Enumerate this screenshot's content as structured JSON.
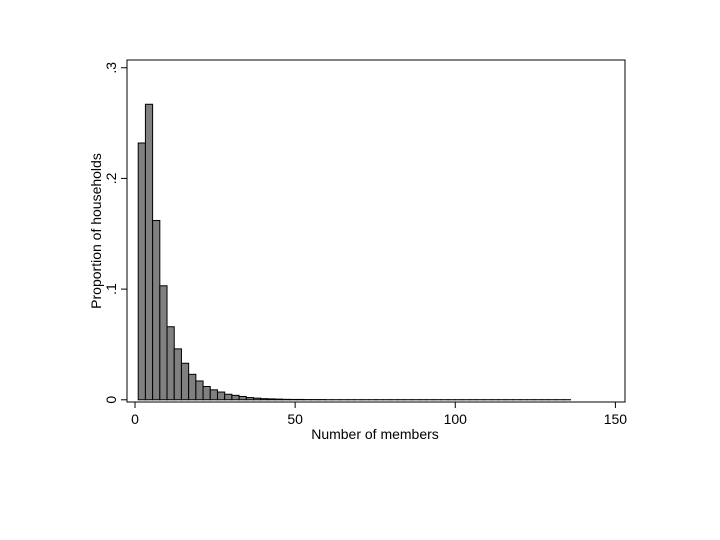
{
  "chart_data": {
    "type": "histogram",
    "xlabel": "Number of members",
    "ylabel": "Proportion of households",
    "bins": [
      1,
      3.25,
      5.5,
      7.75,
      10,
      12.25,
      14.5,
      16.75,
      19,
      21.25,
      23.5,
      25.75,
      28,
      30.25,
      32.5,
      34.75,
      37,
      39.25,
      41.5,
      43.75,
      46,
      48.25,
      50.5,
      52.75,
      55,
      57.25,
      59.5,
      61.75,
      64,
      66.25,
      68.5,
      70.75,
      73,
      75.25,
      77.5,
      79.75,
      82,
      84.25,
      86.5,
      88.75,
      91,
      93.25,
      95.5,
      97.75,
      100,
      102.25,
      104.5,
      106.75,
      109,
      111.25,
      113.5,
      115.75,
      118,
      120.25,
      122.5,
      124.75,
      127,
      129.25,
      131.5,
      133.75,
      136,
      138.25,
      140.5,
      142.75,
      145,
      147.25,
      149.5
    ],
    "values": [
      0.232,
      0.267,
      0.162,
      0.103,
      0.066,
      0.046,
      0.033,
      0.023,
      0.017,
      0.012,
      0.009,
      0.007,
      0.005,
      0.004,
      0.003,
      0.002,
      0.0015,
      0.001,
      0.0008,
      0.0006,
      0.0004,
      0.0003,
      0.0003,
      0.0002,
      0.0002,
      0.0002,
      0.0001,
      0.0001,
      0.0001,
      0.0001,
      0.0001,
      0.0001,
      0.0001,
      0.0001,
      0.0001,
      0.0001,
      0.0001,
      0.0001,
      0.0001,
      0.0001,
      0.0001,
      0.0001,
      0.0001,
      0.0001,
      0.0001,
      0.0001,
      0.0001,
      0.0001,
      0.0001,
      0.0001,
      0.0001,
      0.0001,
      0.0001,
      0.0001,
      0.0001,
      0.0001,
      0.0001,
      0.0001,
      0.0001,
      0.0001,
      0,
      0,
      0,
      0,
      0,
      0
    ],
    "color": "#808080",
    "xlim": [
      -2.5,
      153
    ],
    "xticks": [
      0,
      50,
      100,
      150
    ],
    "ylim": [
      -0.002,
      0.307
    ],
    "yticks": [
      0,
      {
        "value": 0.1,
        "label": ".1"
      },
      {
        "value": 0.2,
        "label": ".2"
      },
      {
        "value": 0.3,
        "label": ".3"
      }
    ]
  }
}
